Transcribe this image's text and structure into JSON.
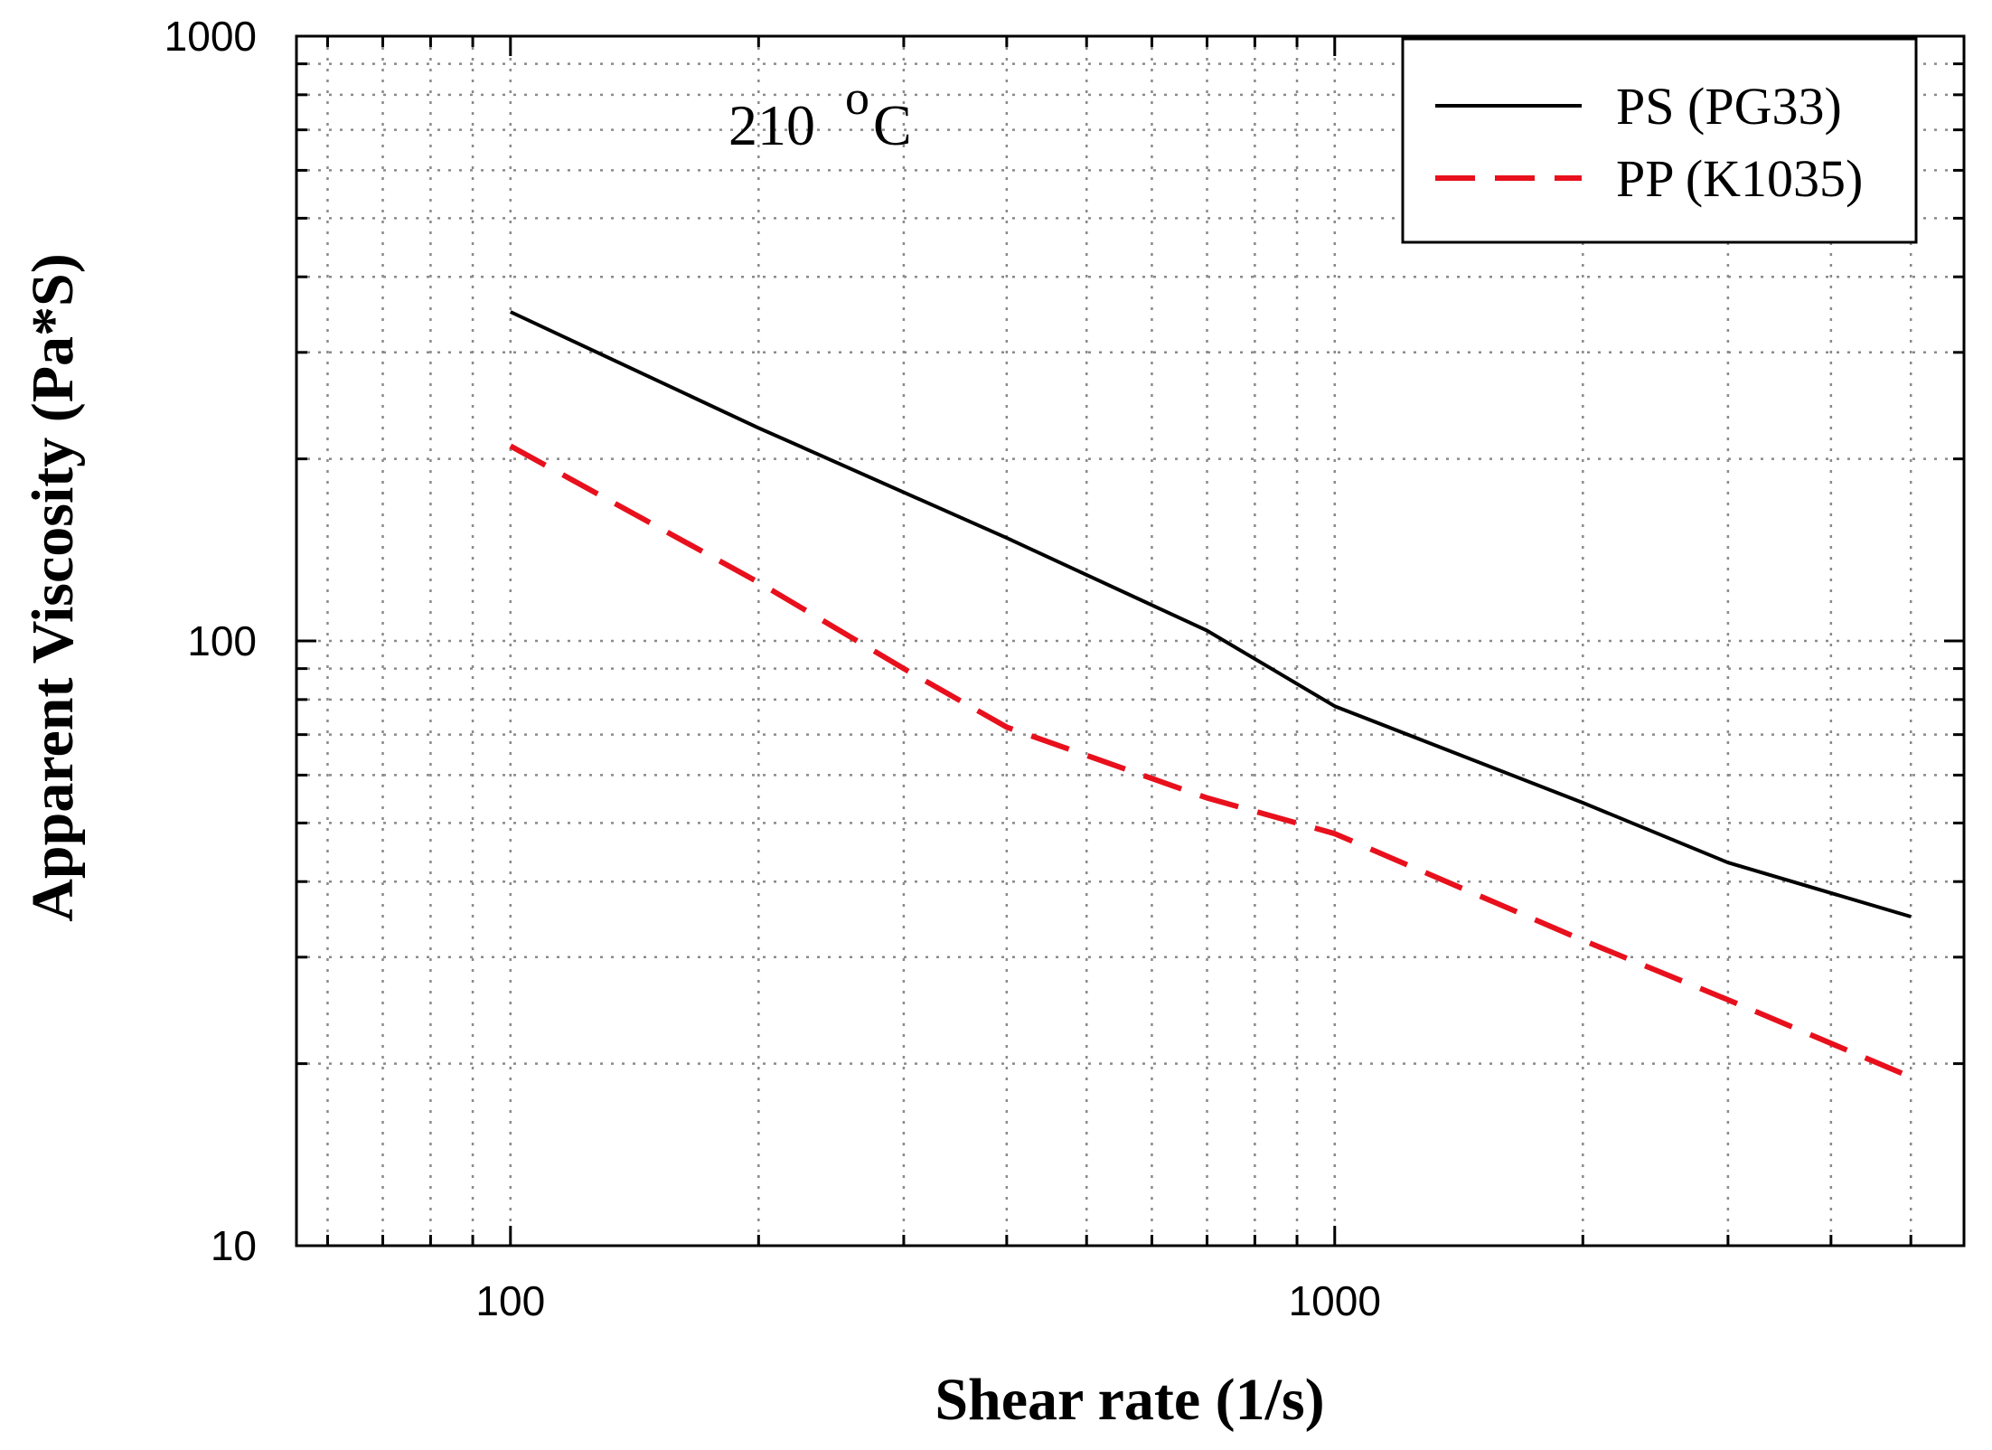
{
  "chart_data": {
    "type": "line",
    "title": "",
    "annotation": {
      "text": "210",
      "superscript": "o",
      "suffix": "C"
    },
    "xlabel": "Shear rate (1/s)",
    "ylabel": "Apparent Viscosity (Pa*S)",
    "xscale": "log",
    "yscale": "log",
    "xlim": [
      55,
      5800
    ],
    "ylim": [
      10,
      1000
    ],
    "x_ticks": [
      {
        "value": 100,
        "label": "100"
      },
      {
        "value": 1000,
        "label": "1000"
      }
    ],
    "y_ticks": [
      {
        "value": 10,
        "label": "10"
      },
      {
        "value": 100,
        "label": "100"
      },
      {
        "value": 1000,
        "label": "1000"
      }
    ],
    "grid": true,
    "legend_position": "top-right",
    "series": [
      {
        "name": "PS (PG33)",
        "color": "#000000",
        "style": "solid",
        "x": [
          100,
          200,
          400,
          700,
          1000,
          2000,
          3000,
          5000
        ],
        "y": [
          350,
          225,
          148,
          104,
          78,
          54,
          43,
          35
        ]
      },
      {
        "name": "PP (K1035)",
        "color": "#e8101c",
        "style": "dashed",
        "x": [
          100,
          200,
          300,
          400,
          700,
          1000,
          2000,
          3000,
          5000
        ],
        "y": [
          210,
          125,
          90,
          72,
          55,
          48,
          32,
          25.5,
          19
        ]
      }
    ]
  }
}
